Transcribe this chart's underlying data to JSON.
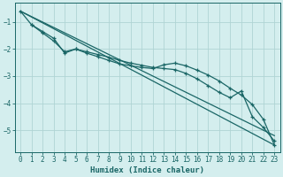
{
  "xlabel": "Humidex (Indice chaleur)",
  "bg_color": "#d4eeee",
  "grid_color": "#b0d4d4",
  "line_color": "#1a6666",
  "xlim": [
    -0.5,
    23.5
  ],
  "ylim": [
    -5.8,
    -0.3
  ],
  "yticks": [
    -5,
    -4,
    -3,
    -2,
    -1
  ],
  "xticks": [
    0,
    1,
    2,
    3,
    4,
    5,
    6,
    7,
    8,
    9,
    10,
    11,
    12,
    13,
    14,
    15,
    16,
    17,
    18,
    19,
    20,
    21,
    22,
    23
  ],
  "line1_x": [
    0,
    23
  ],
  "line1_y": [
    -0.6,
    -5.55
  ],
  "line2_x": [
    0,
    23
  ],
  "line2_y": [
    -0.6,
    -5.2
  ],
  "s3x": [
    1,
    2,
    3,
    4,
    5,
    6,
    7,
    8,
    9,
    10,
    11,
    12,
    13,
    14,
    15,
    16,
    17,
    18,
    19,
    20,
    21,
    22,
    23
  ],
  "s3y": [
    -1.1,
    -1.35,
    -1.6,
    -2.15,
    -2.0,
    -2.1,
    -2.2,
    -2.3,
    -2.42,
    -2.52,
    -2.6,
    -2.68,
    -2.72,
    -2.76,
    -2.9,
    -3.1,
    -3.35,
    -3.6,
    -3.8,
    -3.55,
    -4.5,
    -4.9,
    -5.4
  ],
  "s4x": [
    0,
    1,
    2,
    3,
    4,
    5,
    6,
    7,
    8,
    9,
    10,
    11,
    12,
    13,
    14,
    15,
    16,
    17,
    18,
    19,
    20,
    21,
    22,
    23
  ],
  "s4y": [
    -0.6,
    -1.1,
    -1.4,
    -1.7,
    -2.1,
    -2.0,
    -2.15,
    -2.28,
    -2.42,
    -2.55,
    -2.62,
    -2.68,
    -2.72,
    -2.58,
    -2.52,
    -2.62,
    -2.78,
    -2.96,
    -3.18,
    -3.45,
    -3.7,
    -4.05,
    -4.6,
    -5.55
  ]
}
